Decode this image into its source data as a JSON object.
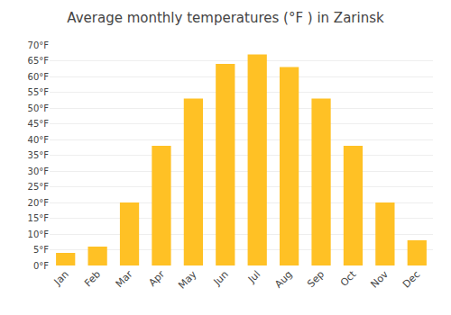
{
  "chart_data": {
    "type": "bar",
    "title": "Average monthly temperatures (°F ) in Zarinsk",
    "categories": [
      "Jan",
      "Feb",
      "Mar",
      "Apr",
      "May",
      "Jun",
      "Jul",
      "Aug",
      "Sep",
      "Oct",
      "Nov",
      "Dec"
    ],
    "values": [
      4,
      6,
      20,
      38,
      53,
      64,
      67,
      63,
      53,
      38,
      20,
      8
    ],
    "color": "#FFC125",
    "ylim": [
      0,
      70
    ],
    "yticks": [
      {
        "value": 0,
        "label": "0°F"
      },
      {
        "value": 5,
        "label": "5°F"
      },
      {
        "value": 10,
        "label": "10°F"
      },
      {
        "value": 15,
        "label": "15°F"
      },
      {
        "value": 20,
        "label": "20°F"
      },
      {
        "value": 25,
        "label": "25°F"
      },
      {
        "value": 30,
        "label": "30°F"
      },
      {
        "value": 35,
        "label": "35°F"
      },
      {
        "value": 40,
        "label": "40°F"
      },
      {
        "value": 45,
        "label": "45°F"
      },
      {
        "value": 50,
        "label": "50°F"
      },
      {
        "value": 55,
        "label": "55°F"
      },
      {
        "value": 60,
        "label": "60°F"
      },
      {
        "value": 65,
        "label": "65°F"
      },
      {
        "value": 70,
        "label": "70°F"
      }
    ],
    "grid": true
  }
}
